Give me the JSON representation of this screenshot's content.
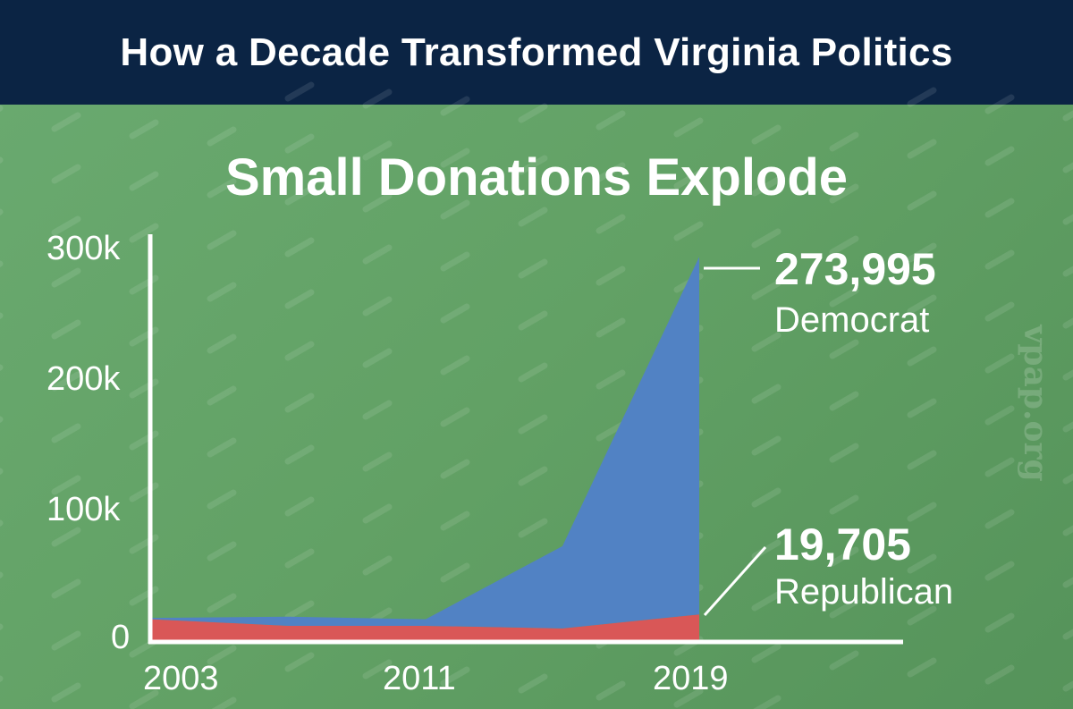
{
  "header": {
    "title": "How a Decade Transformed Virginia Politics"
  },
  "watermark": "vpap.org",
  "chart_data": {
    "type": "area",
    "stacked": true,
    "title": "Small Donations Explode",
    "xlabel": "",
    "ylabel": "",
    "x": [
      2003,
      2007,
      2011,
      2015,
      2019
    ],
    "xticks": [
      "2003",
      "2011",
      "2019"
    ],
    "yticks": [
      "0",
      "100k",
      "200k",
      "300k"
    ],
    "ylim": [
      0,
      300000
    ],
    "series": [
      {
        "name": "Republican",
        "color": "#d95757",
        "values": [
          16000,
          11000,
          11000,
          9000,
          19705
        ]
      },
      {
        "name": "Democrat",
        "color": "#5182c4",
        "values": [
          1000,
          7000,
          5000,
          63000,
          273995
        ]
      }
    ],
    "annotations": [
      {
        "value": "273,995",
        "label": "Democrat"
      },
      {
        "value": "19,705",
        "label": "Republican"
      }
    ]
  }
}
